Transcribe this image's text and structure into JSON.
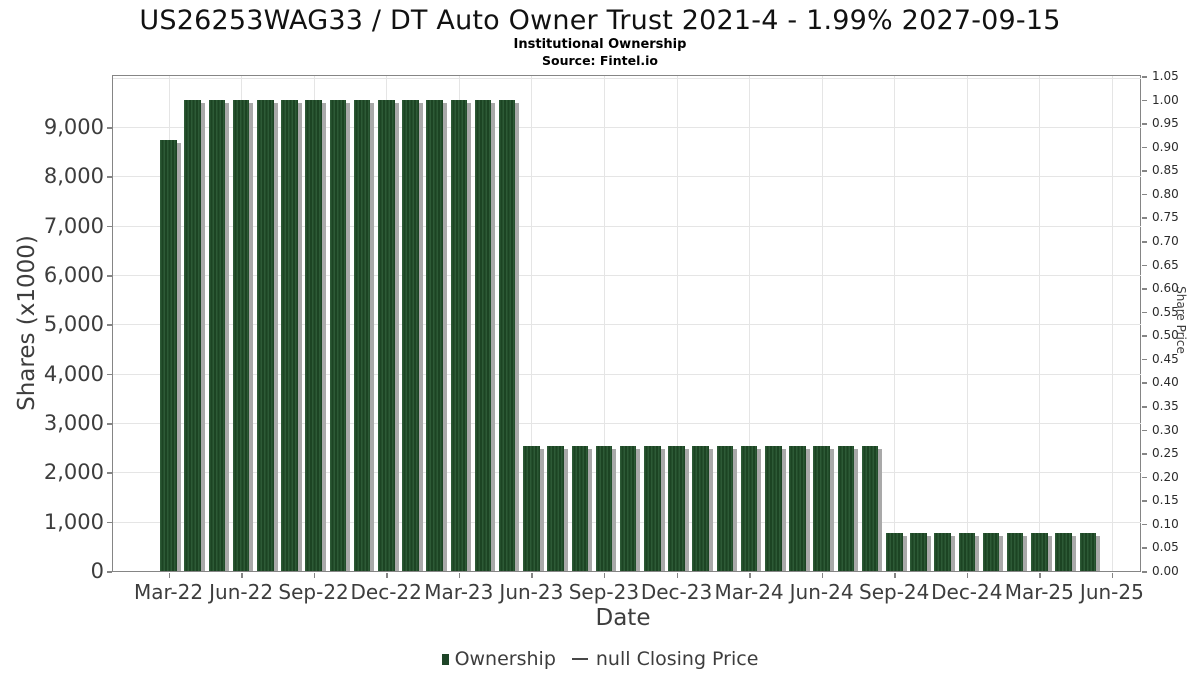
{
  "header": {
    "title": "US26253WAG33 / DT Auto Owner Trust 2021-4 - 1.99% 2027-09-15",
    "subtitle": "Institutional Ownership",
    "source": "Source: Fintel.io"
  },
  "chart_data": {
    "type": "bar",
    "title": "US26253WAG33 / DT Auto Owner Trust 2021-4 - 1.99% 2027-09-15",
    "subtitle": "Institutional Ownership",
    "source": "Source: Fintel.io",
    "xlabel": "Date",
    "ylabel_left": "Shares (x1000)",
    "ylabel_right": "Share Price",
    "legend": [
      {
        "label": "Ownership",
        "marker": "square",
        "color": "#1e4527"
      },
      {
        "label": "null Closing Price",
        "marker": "dash",
        "color": "#474747"
      }
    ],
    "colors": {
      "bar": "#1f4a28",
      "bar_stripe": "#2d5a36",
      "bar_shadow": "#a9a9a9",
      "grid": "#e5e5e5",
      "axis": "#858585",
      "tick_text": "#3d3d3d"
    },
    "categories": [
      "Mar-22",
      "Apr-22",
      "May-22",
      "Jun-22",
      "Jul-22",
      "Aug-22",
      "Sep-22",
      "Oct-22",
      "Nov-22",
      "Dec-22",
      "Jan-23",
      "Feb-23",
      "Mar-23",
      "Apr-23",
      "May-23",
      "Jun-23",
      "Jul-23",
      "Aug-23",
      "Sep-23",
      "Oct-23",
      "Nov-23",
      "Dec-23",
      "Jan-24",
      "Feb-24",
      "Mar-24",
      "Apr-24",
      "May-24",
      "Jun-24",
      "Jul-24",
      "Aug-24",
      "Sep-24",
      "Oct-24",
      "Nov-24",
      "Dec-24",
      "Jan-25",
      "Feb-25",
      "Mar-25",
      "Apr-25",
      "May-25"
    ],
    "values": [
      8740,
      9550,
      9550,
      9550,
      9550,
      9550,
      9550,
      9550,
      9550,
      9550,
      9550,
      9550,
      9550,
      9550,
      9550,
      2530,
      2530,
      2530,
      2530,
      2530,
      2530,
      2530,
      2530,
      2530,
      2530,
      2530,
      2530,
      2530,
      2530,
      2530,
      780,
      780,
      780,
      780,
      780,
      780,
      780,
      780,
      780
    ],
    "series": [
      {
        "name": "Ownership",
        "type": "bar"
      },
      {
        "name": "null Closing Price",
        "type": "line",
        "values": []
      }
    ],
    "x_ticks": {
      "labels": [
        "Mar-22",
        "Jun-22",
        "Sep-22",
        "Dec-22",
        "Mar-23",
        "Jun-23",
        "Sep-23",
        "Dec-23",
        "Mar-24",
        "Jun-24",
        "Sep-24",
        "Dec-24",
        "Mar-25",
        "Jun-25"
      ],
      "month_step": 3
    },
    "y_left": {
      "min": 0,
      "max": 10035,
      "grid_step": 1000,
      "tick_labels": [
        "0",
        "1,000",
        "2,000",
        "3,000",
        "4,000",
        "5,000",
        "6,000",
        "7,000",
        "8,000",
        "9,000"
      ]
    },
    "y_right": {
      "min": 0,
      "max": 1.05,
      "step": 0.05,
      "tick_labels": [
        "0.00",
        "0.05",
        "0.10",
        "0.15",
        "0.20",
        "0.25",
        "0.30",
        "0.35",
        "0.40",
        "0.45",
        "0.50",
        "0.55",
        "0.60",
        "0.65",
        "0.70",
        "0.75",
        "0.80",
        "0.85",
        "0.90",
        "0.95",
        "1.00",
        "1.05"
      ]
    }
  }
}
